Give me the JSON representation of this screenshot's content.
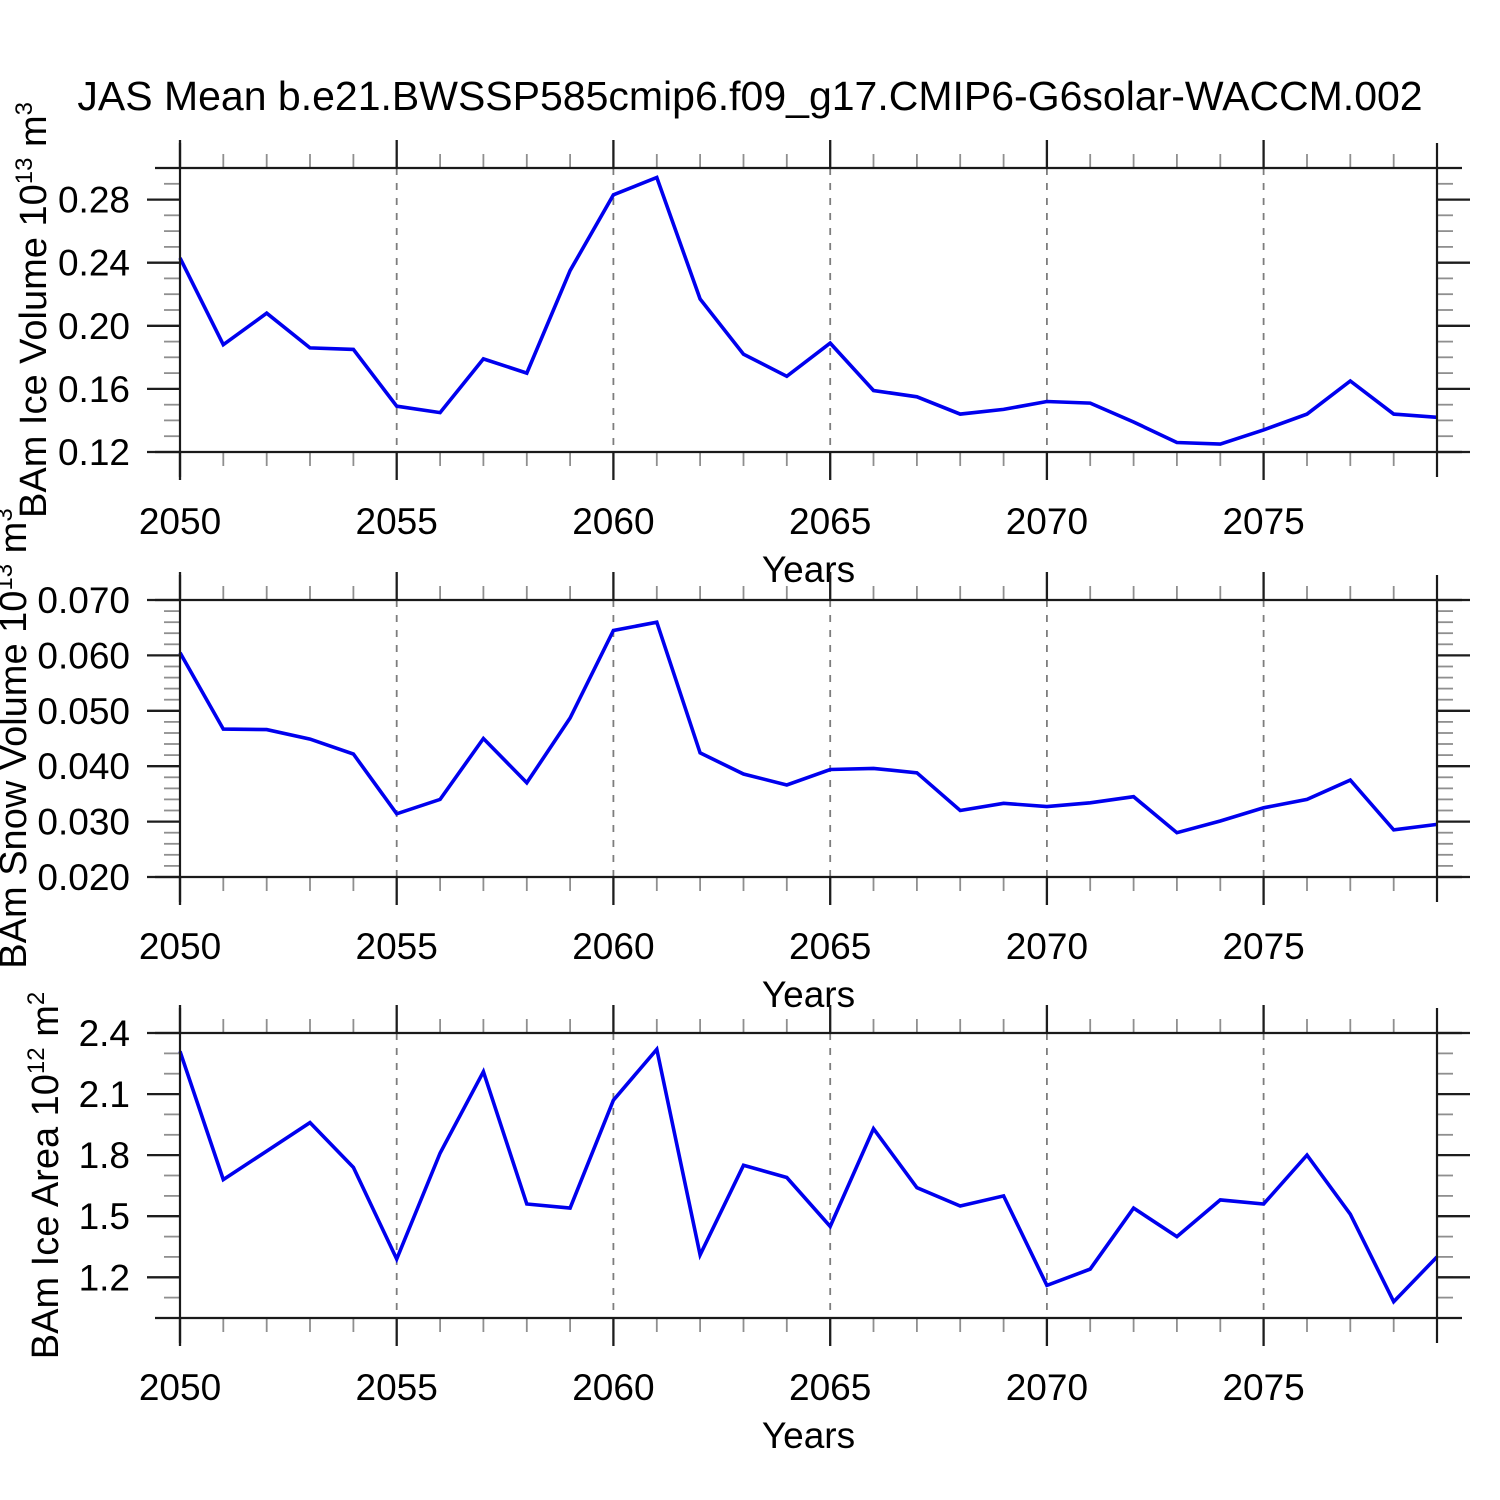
{
  "title": "JAS Mean b.e21.BWSSP585cmip6.f09_g17.CMIP6-G6solar-WACCM.002",
  "colors": {
    "line": "#0000ee",
    "grid": "#7d7d7d",
    "frame": "#1a1a1a",
    "background": "#ffffff"
  },
  "chart_data": {
    "type": "line",
    "title": "JAS Mean b.e21.BWSSP585cmip6.f09_g17.CMIP6-G6solar-WACCM.002",
    "xlabel": "Years",
    "xlim": [
      2050,
      2079
    ],
    "x": [
      2050,
      2051,
      2052,
      2053,
      2054,
      2055,
      2056,
      2057,
      2058,
      2059,
      2060,
      2061,
      2062,
      2063,
      2064,
      2065,
      2066,
      2067,
      2068,
      2069,
      2070,
      2071,
      2072,
      2073,
      2074,
      2075,
      2076,
      2077,
      2078,
      2079
    ],
    "x_major_ticks": [
      2050,
      2055,
      2060,
      2065,
      2070,
      2075
    ],
    "x_major_tick_labels": [
      "2050",
      "2055",
      "2060",
      "2065",
      "2070",
      "2075"
    ],
    "x_gridlines": [
      2055,
      2060,
      2065,
      2070,
      2075
    ],
    "grid_style": "dashed-vertical",
    "legend": "none",
    "line_color": "#0000ee",
    "panels": [
      {
        "name": "ice-volume",
        "ylabel_text": "BAm Ice Volume 10^13 m^3",
        "ylabel_parts": [
          "BAm Ice Volume 10",
          "13",
          " m",
          "3"
        ],
        "ylim": [
          0.12,
          0.3
        ],
        "ytick_values": [
          0.12,
          0.16,
          0.2,
          0.24,
          0.28
        ],
        "ytick_labels": [
          "0.12",
          "0.16",
          "0.20",
          "0.24",
          "0.28"
        ],
        "y_minor_step": 0.01,
        "xlabel": "Years",
        "values": [
          0.243,
          0.188,
          0.208,
          0.186,
          0.185,
          0.149,
          0.145,
          0.179,
          0.17,
          0.235,
          0.283,
          0.294,
          0.217,
          0.182,
          0.168,
          0.189,
          0.159,
          0.155,
          0.144,
          0.147,
          0.152,
          0.151,
          0.139,
          0.126,
          0.125,
          0.134,
          0.144,
          0.165,
          0.144,
          0.142
        ]
      },
      {
        "name": "snow-volume",
        "ylabel_text": "BAm Snow Volume 10^13 m^3",
        "ylabel_parts": [
          "BAm Snow Volume 10",
          "13",
          " m",
          "3"
        ],
        "ylim": [
          0.02,
          0.07
        ],
        "ytick_values": [
          0.02,
          0.03,
          0.04,
          0.05,
          0.06,
          0.07
        ],
        "ytick_labels": [
          "0.020",
          "0.030",
          "0.040",
          "0.050",
          "0.060",
          "0.070"
        ],
        "y_minor_step": 0.002,
        "xlabel": "Years",
        "values": [
          0.0605,
          0.0467,
          0.0466,
          0.0449,
          0.0422,
          0.0314,
          0.034,
          0.045,
          0.037,
          0.0487,
          0.0645,
          0.066,
          0.0424,
          0.0386,
          0.0366,
          0.0394,
          0.0396,
          0.0388,
          0.032,
          0.0333,
          0.0327,
          0.0334,
          0.0345,
          0.028,
          0.0301,
          0.0325,
          0.034,
          0.0375,
          0.0285,
          0.0295
        ]
      },
      {
        "name": "ice-area",
        "ylabel_text": "BAm Ice Area 10^12 m^2",
        "ylabel_parts": [
          "BAm Ice Area 10",
          "12",
          " m",
          "2"
        ],
        "ylim": [
          1.0,
          2.4
        ],
        "ytick_values": [
          1.2,
          1.5,
          1.8,
          2.1,
          2.4
        ],
        "ytick_labels": [
          "1.2",
          "1.5",
          "1.8",
          "2.1",
          "2.4"
        ],
        "y_minor_step": 0.1,
        "xlabel": "Years",
        "values": [
          2.31,
          1.68,
          1.82,
          1.96,
          1.74,
          1.29,
          1.81,
          2.21,
          1.56,
          1.54,
          2.07,
          2.32,
          1.31,
          1.75,
          1.69,
          1.45,
          1.93,
          1.64,
          1.55,
          1.6,
          1.16,
          1.24,
          1.54,
          1.4,
          1.58,
          1.56,
          1.8,
          1.51,
          1.08,
          1.3
        ]
      }
    ]
  }
}
